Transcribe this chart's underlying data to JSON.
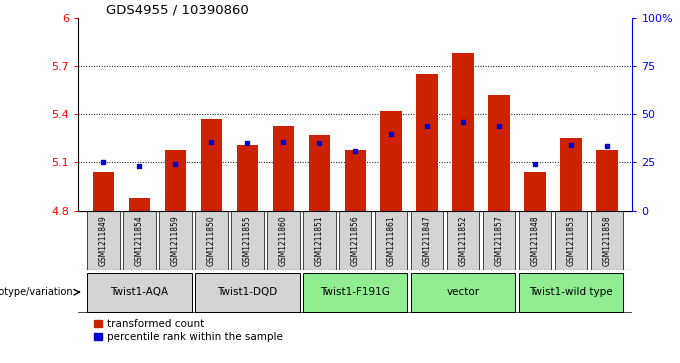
{
  "title": "GDS4955 / 10390860",
  "samples": [
    "GSM1211849",
    "GSM1211854",
    "GSM1211859",
    "GSM1211850",
    "GSM1211855",
    "GSM1211860",
    "GSM1211851",
    "GSM1211856",
    "GSM1211861",
    "GSM1211847",
    "GSM1211852",
    "GSM1211857",
    "GSM1211848",
    "GSM1211853",
    "GSM1211858"
  ],
  "red_values": [
    5.04,
    4.88,
    5.18,
    5.37,
    5.21,
    5.33,
    5.27,
    5.18,
    5.42,
    5.65,
    5.78,
    5.52,
    5.04,
    5.25,
    5.18
  ],
  "blue_values": [
    5.1,
    5.08,
    5.09,
    5.23,
    5.22,
    5.23,
    5.22,
    5.17,
    5.28,
    5.33,
    5.35,
    5.33,
    5.09,
    5.21,
    5.2
  ],
  "groups": [
    {
      "label": "Twist1-AQA",
      "start": 0,
      "end": 3,
      "color": "#d3d3d3"
    },
    {
      "label": "Twist1-DQD",
      "start": 3,
      "end": 6,
      "color": "#d3d3d3"
    },
    {
      "label": "Twist1-F191G",
      "start": 6,
      "end": 9,
      "color": "#90ee90"
    },
    {
      "label": "vector",
      "start": 9,
      "end": 12,
      "color": "#90ee90"
    },
    {
      "label": "Twist1-wild type",
      "start": 12,
      "end": 15,
      "color": "#90ee90"
    }
  ],
  "ymin": 4.8,
  "ymax": 6.0,
  "yticks": [
    4.8,
    5.1,
    5.4,
    5.7,
    6.0
  ],
  "ytick_labels": [
    "4.8",
    "5.1",
    "5.4",
    "5.7",
    "6"
  ],
  "right_yticks": [
    0,
    25,
    50,
    75,
    100
  ],
  "right_ytick_labels": [
    "0",
    "25",
    "50",
    "75",
    "100%"
  ],
  "hlines": [
    5.1,
    5.4,
    5.7
  ],
  "bar_color": "#cc2200",
  "blue_color": "#0000cc",
  "bar_width": 0.6,
  "legend_items": [
    "transformed count",
    "percentile rank within the sample"
  ],
  "sample_cell_color": "#d3d3d3",
  "gv_label": "genotype/variation"
}
